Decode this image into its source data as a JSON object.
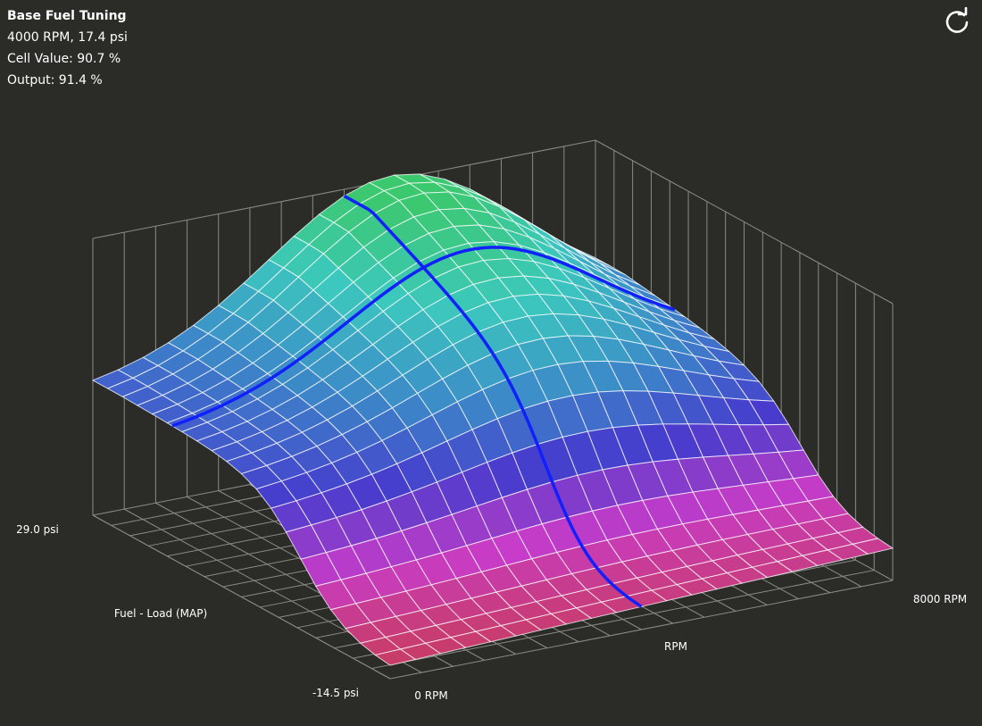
{
  "header": {
    "title": "Base Fuel Tuning",
    "lines": [
      "4000 RPM, 17.4 psi",
      "Cell Value: 90.7 %",
      "Output: 91.4 %"
    ]
  },
  "axes": {
    "load_max": "29.0 psi",
    "load_label": "Fuel - Load (MAP)",
    "load_min": "-14.5 psi",
    "rpm_min": "0 RPM",
    "rpm_label": "RPM",
    "rpm_max": "8000 RPM"
  }
}
